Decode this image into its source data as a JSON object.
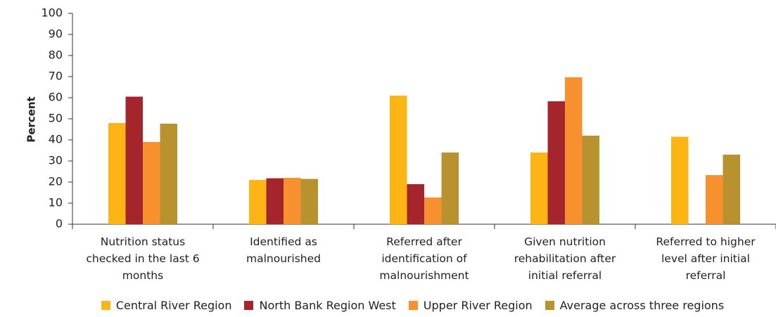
{
  "chart_data": {
    "type": "bar",
    "y_label": "Percent",
    "categories": [
      "Nutrition status checked in the last 6 months",
      "Identified as malnourished",
      "Referred after identification of malnourishment",
      "Given nutrition rehabilitation after initial referral",
      "Referred to higher level after initial referral"
    ],
    "series": [
      {
        "name": "Central River Region",
        "color": "#fdb515",
        "values": [
          48,
          21,
          61,
          34,
          41.5
        ]
      },
      {
        "name": "North Bank Region West",
        "color": "#a4262c",
        "values": [
          60.5,
          21.8,
          19,
          58.3,
          null
        ]
      },
      {
        "name": "Upper River Region",
        "color": "#f7902e",
        "values": [
          39,
          22,
          12.7,
          69.7,
          23.3
        ]
      },
      {
        "name": "Average across three regions",
        "color": "#b8922e",
        "values": [
          47.7,
          21.5,
          34,
          42,
          33
        ]
      }
    ],
    "ylim": [
      0,
      100
    ],
    "yticks": [
      0,
      10,
      20,
      30,
      40,
      50,
      60,
      70,
      80,
      90,
      100
    ],
    "legend": "bottom"
  }
}
